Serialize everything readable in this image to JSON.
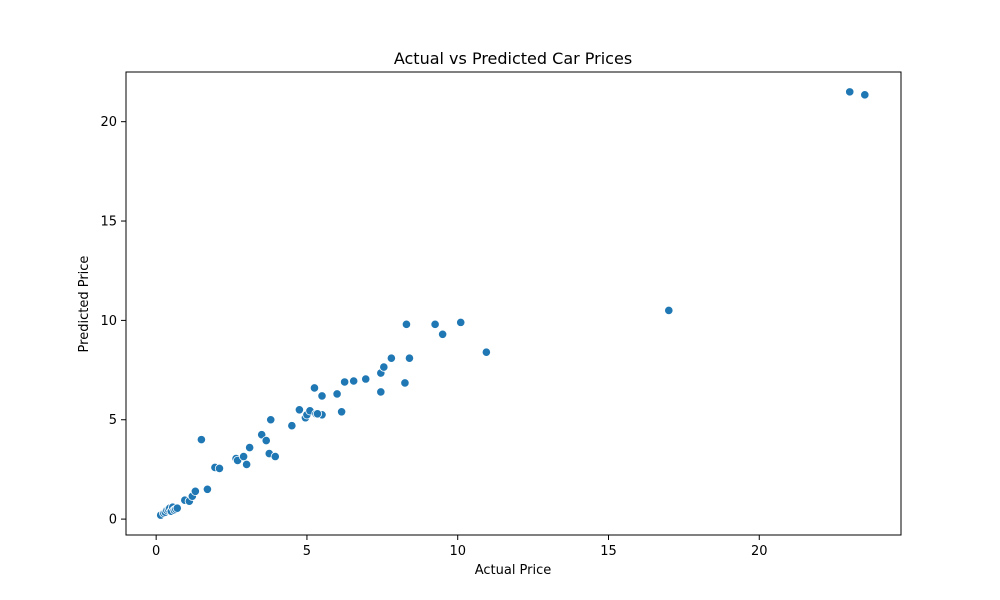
{
  "chart_data": {
    "type": "scatter",
    "title": "Actual vs Predicted Car Prices",
    "xlabel": "Actual Price",
    "ylabel": "Predicted Price",
    "xlim": [
      -1.0,
      24.7
    ],
    "ylim": [
      -0.8,
      22.5
    ],
    "xticks": [
      0,
      5,
      10,
      15,
      20
    ],
    "yticks": [
      0,
      5,
      10,
      15,
      20
    ],
    "grid": false,
    "marker_color": "#1f77b4",
    "series": [
      {
        "points": [
          [
            0.15,
            0.2
          ],
          [
            0.25,
            0.3
          ],
          [
            0.3,
            0.35
          ],
          [
            0.35,
            0.45
          ],
          [
            0.4,
            0.5
          ],
          [
            0.45,
            0.55
          ],
          [
            0.5,
            0.4
          ],
          [
            0.55,
            0.6
          ],
          [
            0.6,
            0.45
          ],
          [
            0.65,
            0.5
          ],
          [
            0.7,
            0.55
          ],
          [
            0.95,
            0.95
          ],
          [
            1.1,
            0.9
          ],
          [
            1.2,
            1.15
          ],
          [
            1.3,
            1.4
          ],
          [
            1.5,
            4.0
          ],
          [
            1.7,
            1.5
          ],
          [
            1.95,
            2.6
          ],
          [
            2.1,
            2.55
          ],
          [
            2.65,
            3.05
          ],
          [
            2.7,
            2.95
          ],
          [
            2.9,
            3.15
          ],
          [
            3.0,
            2.75
          ],
          [
            3.1,
            3.6
          ],
          [
            3.5,
            4.25
          ],
          [
            3.65,
            3.95
          ],
          [
            3.75,
            3.3
          ],
          [
            3.8,
            5.0
          ],
          [
            3.95,
            3.15
          ],
          [
            4.5,
            4.7
          ],
          [
            4.75,
            5.5
          ],
          [
            4.95,
            5.1
          ],
          [
            5.0,
            5.25
          ],
          [
            5.1,
            5.45
          ],
          [
            5.25,
            6.6
          ],
          [
            5.3,
            5.3
          ],
          [
            5.5,
            5.25
          ],
          [
            5.5,
            6.2
          ],
          [
            5.35,
            5.3
          ],
          [
            6.0,
            6.3
          ],
          [
            6.15,
            5.4
          ],
          [
            6.25,
            6.9
          ],
          [
            6.55,
            6.95
          ],
          [
            6.95,
            7.05
          ],
          [
            7.45,
            7.35
          ],
          [
            7.45,
            6.4
          ],
          [
            7.55,
            7.65
          ],
          [
            7.8,
            8.1
          ],
          [
            8.25,
            6.85
          ],
          [
            8.3,
            9.8
          ],
          [
            8.4,
            8.1
          ],
          [
            9.25,
            9.8
          ],
          [
            9.5,
            9.3
          ],
          [
            10.1,
            9.9
          ],
          [
            10.95,
            8.4
          ],
          [
            17.0,
            10.5
          ],
          [
            23.0,
            21.5
          ],
          [
            23.5,
            21.35
          ]
        ]
      }
    ]
  }
}
